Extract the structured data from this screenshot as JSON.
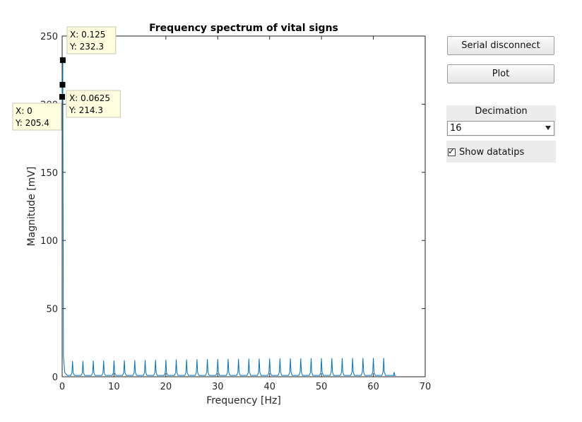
{
  "chart_data": {
    "type": "line",
    "title": "Frequency spectrum of vital signs",
    "xlabel": "Frequency [Hz]",
    "ylabel": "Magnitude [mV]",
    "xlim": [
      0,
      70
    ],
    "ylim": [
      0,
      250
    ],
    "xticks": [
      "0",
      "10",
      "20",
      "30",
      "40",
      "50",
      "60",
      "70"
    ],
    "yticks": [
      "0",
      "50",
      "100",
      "150",
      "200",
      "250"
    ],
    "grid": false,
    "series": [
      {
        "color": "#0072bd",
        "x": [
          0,
          0.0625,
          0.125,
          0.25,
          0.5,
          1,
          2,
          4,
          6,
          8,
          10,
          12,
          14,
          16,
          18,
          20,
          22,
          24,
          26,
          28,
          30,
          32,
          34,
          36,
          38,
          40,
          42,
          44,
          46,
          48,
          50,
          52,
          54,
          56,
          58,
          60,
          62,
          64
        ],
        "y": [
          205.4,
          214.3,
          232.3,
          15,
          3,
          1,
          11.5,
          11.6,
          11.8,
          11.9,
          12.0,
          12.1,
          12.2,
          12.3,
          12.4,
          12.5,
          12.6,
          12.7,
          12.8,
          12.9,
          13.0,
          13.1,
          13.2,
          13.3,
          13.3,
          13.4,
          13.4,
          13.5,
          13.5,
          13.6,
          13.6,
          13.7,
          13.7,
          13.8,
          13.8,
          13.8,
          13.8,
          3.5
        ]
      }
    ],
    "datatips": [
      {
        "x": 0.125,
        "y": 232.3,
        "xlabel": "X: 0.125",
        "ylabel": "Y: 232.3"
      },
      {
        "x": 0.0625,
        "y": 214.3,
        "xlabel": "X: 0.0625",
        "ylabel": "Y: 214.3"
      },
      {
        "x": 0,
        "y": 205.4,
        "xlabel": "X: 0",
        "ylabel": "Y: 205.4"
      }
    ]
  },
  "controls": {
    "serial_button": "Serial disconnect",
    "plot_button": "Plot",
    "decimation_label": "Decimation",
    "decimation_value": "16",
    "show_datatips_label": "Show datatips",
    "show_datatips_checked": true
  }
}
